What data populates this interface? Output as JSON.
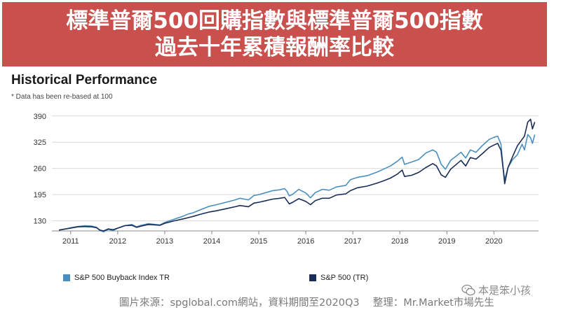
{
  "banner": {
    "line1": "標準普爾500回購指數與標準普爾500指數",
    "line2": "過去十年累積報酬率比較",
    "color": "#c9504d"
  },
  "chart_data": {
    "type": "line",
    "title": "Historical Performance",
    "note": "* Data has been re-based at 100",
    "xlabel": "",
    "ylabel": "",
    "xlim": [
      2010.6,
      2020.95
    ],
    "ylim": [
      105,
      400
    ],
    "y_ticks": [
      130,
      195,
      260,
      325,
      390
    ],
    "x_ticks": [
      2011,
      2012,
      2013,
      2014,
      2015,
      2016,
      2017,
      2018,
      2019,
      2020
    ],
    "series": [
      {
        "name": "S&P 500 Buyback Index TR",
        "color": "#4a8fbf",
        "points": [
          [
            2010.75,
            107
          ],
          [
            2010.9,
            110
          ],
          [
            2011.0,
            113
          ],
          [
            2011.15,
            116
          ],
          [
            2011.3,
            118
          ],
          [
            2011.45,
            117
          ],
          [
            2011.55,
            114
          ],
          [
            2011.62,
            106
          ],
          [
            2011.7,
            103
          ],
          [
            2011.8,
            109
          ],
          [
            2011.9,
            106
          ],
          [
            2012.0,
            112
          ],
          [
            2012.15,
            118
          ],
          [
            2012.3,
            121
          ],
          [
            2012.4,
            115
          ],
          [
            2012.5,
            119
          ],
          [
            2012.65,
            123
          ],
          [
            2012.8,
            121
          ],
          [
            2012.9,
            120
          ],
          [
            2013.0,
            126
          ],
          [
            2013.2,
            134
          ],
          [
            2013.4,
            142
          ],
          [
            2013.5,
            147
          ],
          [
            2013.6,
            150
          ],
          [
            2013.75,
            157
          ],
          [
            2013.95,
            166
          ],
          [
            2014.1,
            170
          ],
          [
            2014.3,
            176
          ],
          [
            2014.5,
            182
          ],
          [
            2014.6,
            186
          ],
          [
            2014.78,
            182
          ],
          [
            2014.9,
            193
          ],
          [
            2015.0,
            195
          ],
          [
            2015.15,
            200
          ],
          [
            2015.3,
            205
          ],
          [
            2015.45,
            207
          ],
          [
            2015.55,
            210
          ],
          [
            2015.6,
            203
          ],
          [
            2015.65,
            192
          ],
          [
            2015.72,
            196
          ],
          [
            2015.85,
            208
          ],
          [
            2016.0,
            199
          ],
          [
            2016.1,
            187
          ],
          [
            2016.2,
            200
          ],
          [
            2016.35,
            208
          ],
          [
            2016.5,
            206
          ],
          [
            2016.65,
            214
          ],
          [
            2016.85,
            218
          ],
          [
            2016.95,
            232
          ],
          [
            2017.1,
            238
          ],
          [
            2017.3,
            242
          ],
          [
            2017.5,
            250
          ],
          [
            2017.65,
            258
          ],
          [
            2017.8,
            266
          ],
          [
            2017.95,
            278
          ],
          [
            2018.05,
            288
          ],
          [
            2018.1,
            270
          ],
          [
            2018.25,
            276
          ],
          [
            2018.4,
            282
          ],
          [
            2018.55,
            298
          ],
          [
            2018.7,
            306
          ],
          [
            2018.78,
            300
          ],
          [
            2018.88,
            270
          ],
          [
            2018.97,
            258
          ],
          [
            2019.08,
            280
          ],
          [
            2019.3,
            300
          ],
          [
            2019.4,
            286
          ],
          [
            2019.5,
            306
          ],
          [
            2019.62,
            300
          ],
          [
            2019.75,
            316
          ],
          [
            2019.9,
            332
          ],
          [
            2020.0,
            337
          ],
          [
            2020.08,
            340
          ],
          [
            2020.15,
            320
          ],
          [
            2020.2,
            258
          ],
          [
            2020.23,
            232
          ],
          [
            2020.3,
            262
          ],
          [
            2020.4,
            282
          ],
          [
            2020.5,
            294
          ],
          [
            2020.6,
            320
          ],
          [
            2020.65,
            306
          ],
          [
            2020.72,
            344
          ],
          [
            2020.78,
            336
          ],
          [
            2020.82,
            322
          ],
          [
            2020.87,
            344
          ]
        ]
      },
      {
        "name": "S&P 500 (TR)",
        "color": "#1a2d57",
        "points": [
          [
            2010.75,
            107
          ],
          [
            2010.9,
            110
          ],
          [
            2011.0,
            112
          ],
          [
            2011.15,
            115
          ],
          [
            2011.3,
            116
          ],
          [
            2011.45,
            115
          ],
          [
            2011.55,
            113
          ],
          [
            2011.62,
            107
          ],
          [
            2011.7,
            105
          ],
          [
            2011.8,
            110
          ],
          [
            2011.9,
            108
          ],
          [
            2012.0,
            112
          ],
          [
            2012.15,
            118
          ],
          [
            2012.3,
            119
          ],
          [
            2012.4,
            114
          ],
          [
            2012.5,
            117
          ],
          [
            2012.65,
            121
          ],
          [
            2012.8,
            120
          ],
          [
            2012.9,
            119
          ],
          [
            2013.0,
            124
          ],
          [
            2013.2,
            130
          ],
          [
            2013.4,
            135
          ],
          [
            2013.5,
            138
          ],
          [
            2013.6,
            141
          ],
          [
            2013.75,
            146
          ],
          [
            2013.95,
            152
          ],
          [
            2014.1,
            155
          ],
          [
            2014.3,
            160
          ],
          [
            2014.5,
            165
          ],
          [
            2014.6,
            168
          ],
          [
            2014.78,
            165
          ],
          [
            2014.9,
            174
          ],
          [
            2015.0,
            176
          ],
          [
            2015.15,
            180
          ],
          [
            2015.3,
            184
          ],
          [
            2015.45,
            186
          ],
          [
            2015.55,
            188
          ],
          [
            2015.6,
            180
          ],
          [
            2015.65,
            172
          ],
          [
            2015.72,
            176
          ],
          [
            2015.85,
            185
          ],
          [
            2016.0,
            178
          ],
          [
            2016.1,
            170
          ],
          [
            2016.2,
            180
          ],
          [
            2016.35,
            186
          ],
          [
            2016.5,
            186
          ],
          [
            2016.65,
            194
          ],
          [
            2016.85,
            197
          ],
          [
            2016.95,
            205
          ],
          [
            2017.1,
            212
          ],
          [
            2017.3,
            216
          ],
          [
            2017.5,
            223
          ],
          [
            2017.65,
            229
          ],
          [
            2017.8,
            236
          ],
          [
            2017.95,
            246
          ],
          [
            2018.05,
            256
          ],
          [
            2018.1,
            240
          ],
          [
            2018.25,
            243
          ],
          [
            2018.4,
            250
          ],
          [
            2018.55,
            262
          ],
          [
            2018.7,
            272
          ],
          [
            2018.78,
            266
          ],
          [
            2018.88,
            244
          ],
          [
            2018.97,
            238
          ],
          [
            2019.08,
            258
          ],
          [
            2019.3,
            280
          ],
          [
            2019.4,
            266
          ],
          [
            2019.5,
            287
          ],
          [
            2019.62,
            283
          ],
          [
            2019.75,
            296
          ],
          [
            2019.9,
            312
          ],
          [
            2020.0,
            318
          ],
          [
            2020.08,
            322
          ],
          [
            2020.15,
            305
          ],
          [
            2020.2,
            256
          ],
          [
            2020.23,
            222
          ],
          [
            2020.3,
            262
          ],
          [
            2020.4,
            290
          ],
          [
            2020.5,
            316
          ],
          [
            2020.6,
            332
          ],
          [
            2020.65,
            340
          ],
          [
            2020.72,
            375
          ],
          [
            2020.78,
            382
          ],
          [
            2020.82,
            358
          ],
          [
            2020.87,
            375
          ]
        ]
      }
    ]
  },
  "legend": {
    "buyback": {
      "label": "S&P 500 Buyback Index TR",
      "color": "#4a8fbf"
    },
    "sp500": {
      "label": "S&P 500 (TR)",
      "color": "#1a2d57"
    }
  },
  "source": "圖片來源：spglobal.com網站，資料期間至2020Q3　 整理：Mr.Market市場先生",
  "watermark": "本是笨小孩"
}
